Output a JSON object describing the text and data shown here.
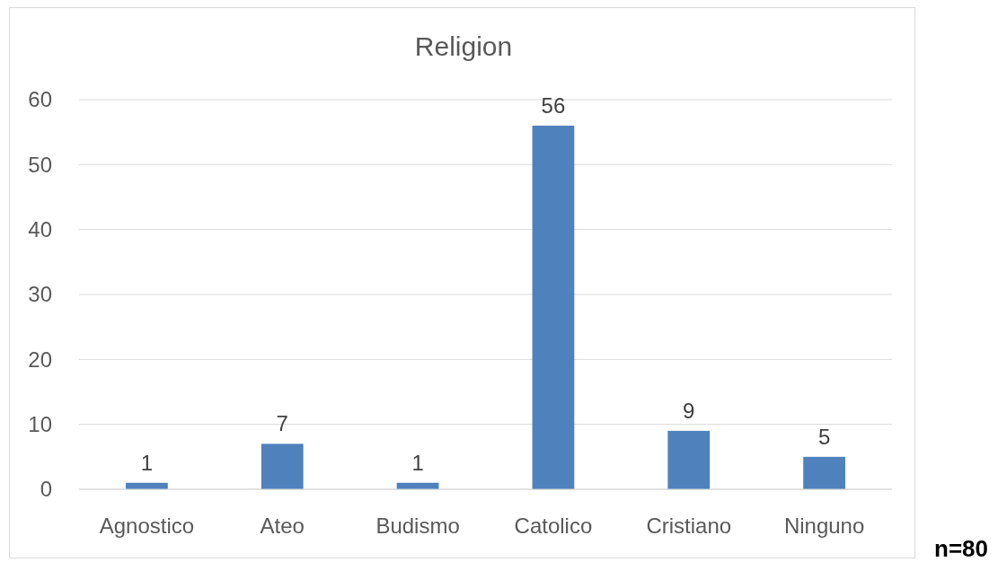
{
  "chart_data": {
    "type": "bar",
    "title": "Religion",
    "categories": [
      "Agnostico",
      "Ateo",
      "Budismo",
      "Catolico",
      "Cristiano",
      "Ninguno"
    ],
    "values": [
      1,
      7,
      1,
      56,
      9,
      5
    ],
    "color": "#4f81bd",
    "ylim": [
      0,
      60
    ],
    "yticks": [
      0,
      10,
      20,
      30,
      40,
      50,
      60
    ],
    "grid": "y",
    "data_labels": true,
    "annotations": [
      "n=80"
    ]
  }
}
